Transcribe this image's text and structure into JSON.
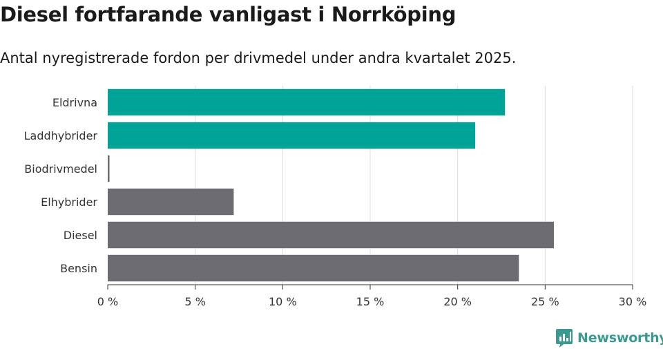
{
  "header": {
    "title": "Diesel fortfarande vanligast i Norrköping",
    "subtitle": "Antal nyregistrerade fordon per drivmedel under andra kvartalet 2025."
  },
  "branding": {
    "name": "Newsworthy",
    "icon": "newsworthy-logo-icon",
    "color": "#3a9a91"
  },
  "colors": {
    "highlight": "#00a398",
    "default": "#6d6c72",
    "grid": "#dcdcdc",
    "axis": "#333333"
  },
  "chart_data": {
    "type": "bar",
    "orientation": "horizontal",
    "categories": [
      "Eldrivna",
      "Laddhybrider",
      "Biodrivmedel",
      "Elhybrider",
      "Diesel",
      "Bensin"
    ],
    "values": [
      22.7,
      21.0,
      0.1,
      7.2,
      25.5,
      23.5
    ],
    "highlighted": [
      true,
      true,
      false,
      false,
      false,
      false
    ],
    "x_ticks": [
      "0 %",
      "5 %",
      "10 %",
      "15 %",
      "20 %",
      "25 %",
      "30 %"
    ],
    "xlim": [
      0,
      30
    ],
    "grid": true
  }
}
